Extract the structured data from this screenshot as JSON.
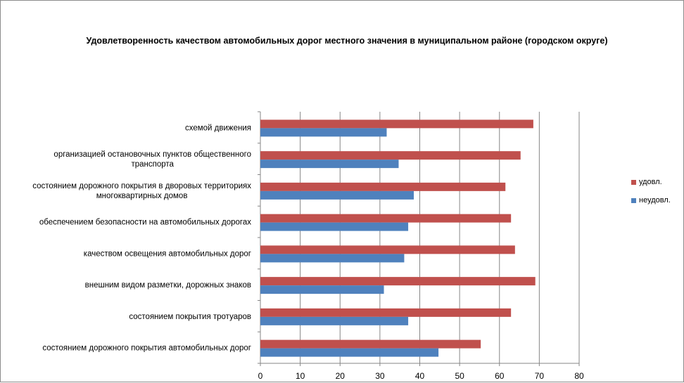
{
  "chart_data": {
    "type": "bar",
    "orientation": "horizontal",
    "title": "Удовлетворенность качеством автомобильных дорог местного значения в муниципальном районе (городском округе)",
    "categories": [
      [
        "схемой движения"
      ],
      [
        "организацией остановочных пунктов общественного",
        "транспорта"
      ],
      [
        "состоянием дорожного покрытия в дворовых территориях",
        "многоквартирных домов"
      ],
      [
        "обеспечением  безопасности на автомобильных дорогах"
      ],
      [
        "качеством освещения  автомобильных дорог"
      ],
      [
        "внешним  видом разметки, дорожных знаков"
      ],
      [
        "состоянием  покрытия тротуаров"
      ],
      [
        "состоянием дорожного покрытия автомобильных дорог"
      ]
    ],
    "series": [
      {
        "name": "удовл.",
        "color": "#c0504d",
        "values": [
          68.5,
          65.3,
          61.5,
          62.9,
          63.9,
          69.0,
          62.9,
          55.3
        ]
      },
      {
        "name": "неудовл.",
        "color": "#4f81bd",
        "values": [
          31.7,
          34.7,
          38.5,
          37.1,
          36.1,
          31.0,
          37.1,
          44.7
        ]
      }
    ],
    "xlim": [
      0,
      80
    ],
    "xticks": [
      "0",
      "10",
      "20",
      "30",
      "40",
      "50",
      "60",
      "70",
      "80"
    ],
    "grid": true,
    "legend_position": "right"
  }
}
